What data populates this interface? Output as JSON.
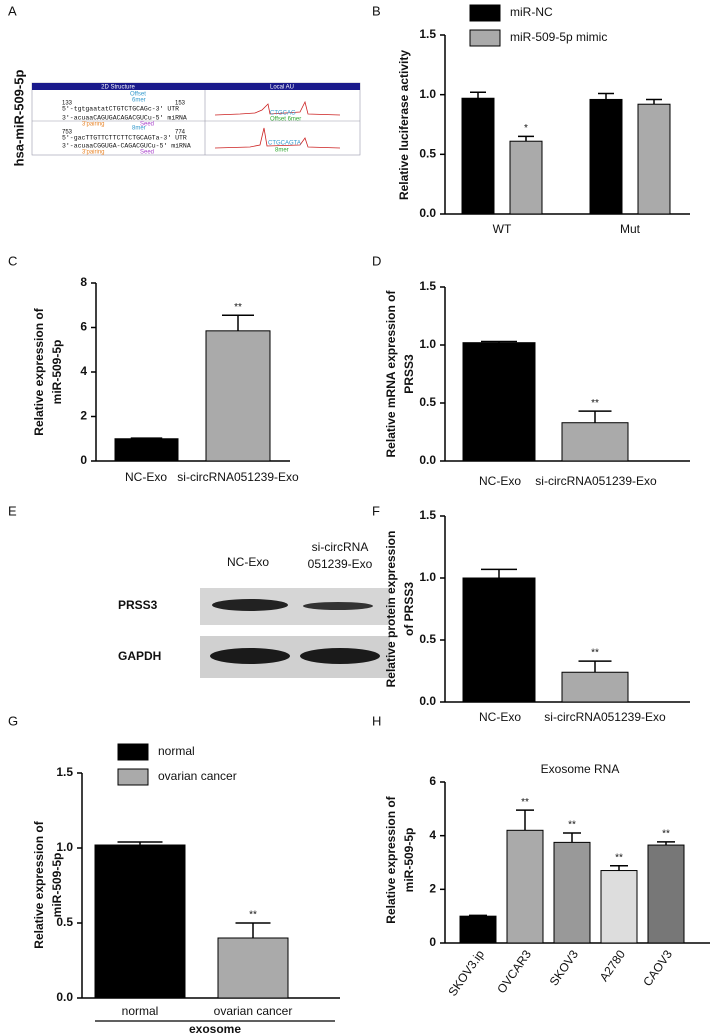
{
  "panel_a": {
    "label": "A",
    "side_label": "hsa-miR-509-5p",
    "headers": [
      "2D Structure",
      "Local AU"
    ],
    "sites": [
      {
        "start": "133",
        "end": "153",
        "site": "Offset",
        "site_type": "6mer",
        "utr": "5'-tgtgaatatCTGTCTGCAGc-3' UTR",
        "mirna": "3'-acuaaCAGUGACAGACGUCu-5' miRNA",
        "pairing": "3'pairing",
        "seed": "Seed",
        "au_seq": "CTGCAG",
        "au_type": "Offset 6mer"
      },
      {
        "start": "753",
        "end": "774",
        "site_type": "8mer",
        "utr": "5'-gacTTGTTCTTCTTCTGCAGTa-3' UTR",
        "mirna": "3'-acuaaCGGUGA-CAGACGUCu-5' miRNA",
        "pairing": "3'pairing",
        "seed": "Seed",
        "au_seq": "CTGCAGTA",
        "au_type": "8mer"
      }
    ]
  },
  "panel_e": {
    "label": "E",
    "lanes": [
      "NC-Exo",
      [
        "si-circRNA",
        "051239-Exo"
      ]
    ],
    "rows": [
      "PRSS3",
      "GAPDH"
    ]
  },
  "chart_data": [
    {
      "type": "bar",
      "panel": "B",
      "ylabel": [
        "Relative  luciferase activity"
      ],
      "categories": [
        "WT",
        "Mut"
      ],
      "series": [
        {
          "name": "miR-NC",
          "color": "#000000",
          "values": [
            0.97,
            0.96
          ],
          "errors": [
            0.05,
            0.05
          ],
          "significance": [
            null,
            null
          ]
        },
        {
          "name": "miR-509-5p mimic",
          "color": "#aaaaaa",
          "values": [
            0.61,
            0.92
          ],
          "errors": [
            0.04,
            0.04
          ],
          "significance": [
            "*",
            null
          ]
        }
      ],
      "ylim": [
        0,
        1.5
      ],
      "yticks": [
        {
          "value": 0,
          "label": "0.0"
        },
        {
          "value": 0.5,
          "label": "0.5"
        },
        {
          "value": 1,
          "label": "1.0"
        },
        {
          "value": 1.5,
          "label": "1.5"
        }
      ]
    },
    {
      "type": "bar",
      "panel": "C",
      "ylabel": [
        "Relative expression of",
        "miR-509-5p"
      ],
      "categories": [
        "NC-Exo",
        "si-circRNA051239-Exo"
      ],
      "values": [
        1.0,
        5.85
      ],
      "errors": [
        0.03,
        0.7
      ],
      "colors": [
        "#000000",
        "#aaaaaa"
      ],
      "significance": [
        null,
        "**"
      ],
      "ylim": [
        0,
        8
      ],
      "yticks": [
        0,
        2,
        4,
        6,
        8
      ]
    },
    {
      "type": "bar",
      "panel": "D",
      "ylabel": [
        "Relative mRNA expression of",
        "PRSS3"
      ],
      "categories": [
        "NC-Exo",
        "si-circRNA051239-Exo"
      ],
      "values": [
        1.02,
        0.33
      ],
      "errors": [
        0.01,
        0.1
      ],
      "colors": [
        "#000000",
        "#aaaaaa"
      ],
      "significance": [
        null,
        "**"
      ],
      "ylim": [
        0,
        1.5
      ],
      "yticks": [
        {
          "value": 0,
          "label": "0.0"
        },
        {
          "value": 0.5,
          "label": "0.5"
        },
        {
          "value": 1,
          "label": "1.0"
        },
        {
          "value": 1.5,
          "label": "1.5"
        }
      ]
    },
    {
      "type": "bar",
      "panel": "F",
      "ylabel": [
        "Relative protein expression",
        "of PRSS3"
      ],
      "categories": [
        "NC-Exo",
        "si-circRNA051239-Exo"
      ],
      "values": [
        1.0,
        0.24
      ],
      "errors": [
        0.07,
        0.09
      ],
      "colors": [
        "#000000",
        "#aaaaaa"
      ],
      "significance": [
        null,
        "**"
      ],
      "ylim": [
        0,
        1.5
      ],
      "yticks": [
        {
          "value": 0,
          "label": "0.0"
        },
        {
          "value": 0.5,
          "label": "0.5"
        },
        {
          "value": 1,
          "label": "1.0"
        },
        {
          "value": 1.5,
          "label": "1.5"
        }
      ]
    },
    {
      "type": "bar",
      "panel": "G",
      "ylabel": [
        "Relative expression of",
        "miR-509-5p"
      ],
      "categories": [
        "normal",
        "ovarian cancer"
      ],
      "xlabel": "exosome",
      "series": [
        {
          "name": "normal",
          "color": "#000000",
          "values": [
            1.02,
            null
          ],
          "errors": [
            0.02,
            null
          ],
          "significance": [
            null,
            null
          ]
        },
        {
          "name": "ovarian cancer",
          "color": "#aaaaaa",
          "values": [
            null,
            0.4
          ],
          "errors": [
            null,
            0.1
          ],
          "significance": [
            null,
            "**"
          ]
        }
      ],
      "ylim": [
        0,
        1.5
      ],
      "yticks": [
        {
          "value": 0,
          "label": "0.0"
        },
        {
          "value": 0.5,
          "label": "0.5"
        },
        {
          "value": 1,
          "label": "1.0"
        },
        {
          "value": 1.5,
          "label": "1.5"
        }
      ]
    },
    {
      "type": "bar",
      "panel": "H",
      "title": "Exosome RNA",
      "ylabel": [
        "Relative expression of",
        "miR-509-5p"
      ],
      "categories": [
        "SKOV3.ip",
        "OVCAR3",
        "SKOV3",
        "A2780",
        "CAOV3"
      ],
      "values": [
        1.0,
        4.2,
        3.75,
        2.7,
        3.65
      ],
      "errors": [
        0.03,
        0.75,
        0.35,
        0.18,
        0.12
      ],
      "colors": [
        "#000000",
        "#aaaaaa",
        "#999999",
        "#dddddd",
        "#777777"
      ],
      "significance": [
        null,
        "**",
        "**",
        "**",
        "**"
      ],
      "ylim": [
        0,
        6
      ],
      "yticks": [
        0,
        2,
        4,
        6
      ]
    }
  ]
}
